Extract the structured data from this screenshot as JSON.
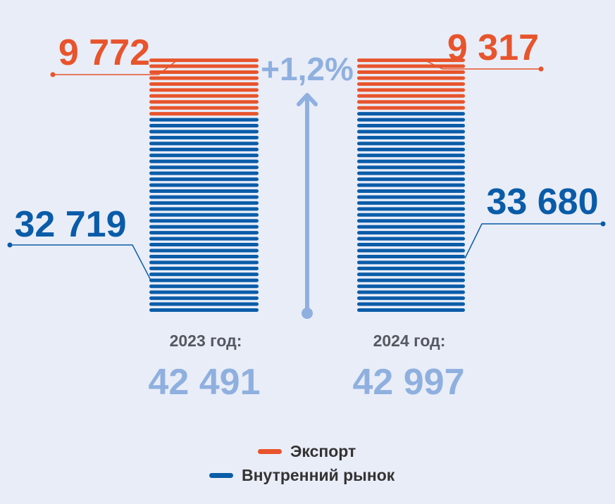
{
  "chart_data": {
    "type": "bar",
    "stacked": true,
    "categories": [
      "2023 год:",
      "2024 год:"
    ],
    "totals": [
      "42 491",
      "42 997"
    ],
    "series": [
      {
        "name": "Экспорт",
        "color": "#e8542c",
        "values": [
          9772,
          9317
        ],
        "labels": [
          "9 772",
          "9 317"
        ]
      },
      {
        "name": "Внутренний рынок",
        "color": "#0a5ca8",
        "values": [
          32719,
          33680
        ],
        "labels": [
          "32 719",
          "33 680"
        ]
      }
    ],
    "growth_label": "+1,2%",
    "growth_color": "#8fb0df",
    "legend_position": "bottom-center"
  }
}
